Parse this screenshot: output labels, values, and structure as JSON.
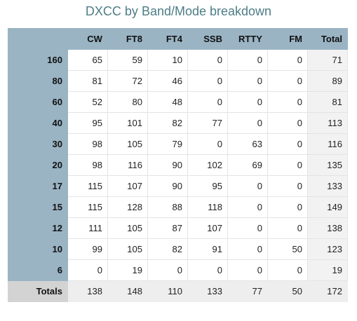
{
  "title": "DXCC by Band/Mode breakdown",
  "columns": [
    "",
    "CW",
    "FT8",
    "FT4",
    "SSB",
    "RTTY",
    "FM",
    "Total"
  ],
  "rows": [
    {
      "band": "160",
      "values": [
        "65",
        "59",
        "10",
        "0",
        "0",
        "0",
        "71"
      ]
    },
    {
      "band": "80",
      "values": [
        "81",
        "72",
        "46",
        "0",
        "0",
        "0",
        "89"
      ]
    },
    {
      "band": "60",
      "values": [
        "52",
        "80",
        "48",
        "0",
        "0",
        "0",
        "81"
      ]
    },
    {
      "band": "40",
      "values": [
        "95",
        "101",
        "82",
        "77",
        "0",
        "0",
        "113"
      ]
    },
    {
      "band": "30",
      "values": [
        "98",
        "105",
        "79",
        "0",
        "63",
        "0",
        "116"
      ]
    },
    {
      "band": "20",
      "values": [
        "98",
        "116",
        "90",
        "102",
        "69",
        "0",
        "135"
      ]
    },
    {
      "band": "17",
      "values": [
        "115",
        "107",
        "90",
        "95",
        "0",
        "0",
        "133"
      ]
    },
    {
      "band": "15",
      "values": [
        "115",
        "128",
        "88",
        "118",
        "0",
        "0",
        "149"
      ]
    },
    {
      "band": "12",
      "values": [
        "111",
        "105",
        "87",
        "107",
        "0",
        "0",
        "138"
      ]
    },
    {
      "band": "10",
      "values": [
        "99",
        "105",
        "82",
        "91",
        "0",
        "50",
        "123"
      ]
    },
    {
      "band": "6",
      "values": [
        "0",
        "19",
        "0",
        "0",
        "0",
        "0",
        "19"
      ]
    }
  ],
  "totals": {
    "label": "Totals",
    "values": [
      "138",
      "148",
      "110",
      "133",
      "77",
      "50",
      "172"
    ]
  },
  "colors": {
    "title": "#4e7d86",
    "header_bg": "#9ab4c4",
    "totals_bg": "#eeeeee",
    "totals_label_bg": "#d3d3d3",
    "grid_line": "#e4e4e4"
  }
}
